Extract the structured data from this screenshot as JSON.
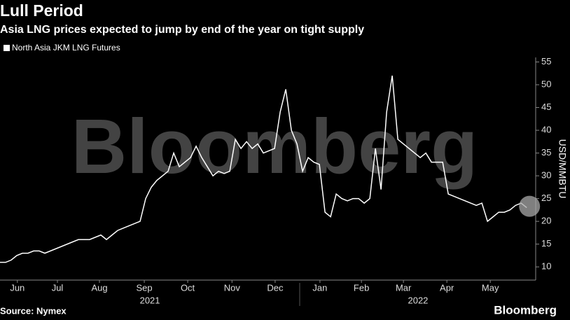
{
  "chart_data": {
    "type": "line",
    "title": "Lull Period",
    "subtitle": "Asia LNG prices expected to jump by end of the year on tight supply",
    "source": "Source: Nymex",
    "brand": "Bloomberg",
    "y_label": "USD/MMBTU",
    "series": [
      {
        "name": "North Asia JKM LNG Futures",
        "color": "#ffffff",
        "values": [
          11,
          11,
          11.5,
          12.5,
          13,
          13,
          13.5,
          13.5,
          13,
          13.5,
          14,
          14.5,
          15,
          15.5,
          16,
          16,
          16,
          16.5,
          17,
          16,
          17,
          18,
          18.5,
          19,
          19.5,
          20,
          25,
          27.5,
          29,
          30,
          31,
          35,
          32,
          33,
          34,
          36.5,
          34,
          32,
          30,
          31,
          30.5,
          31,
          38,
          36,
          37.5,
          36,
          37,
          35,
          35.5,
          36,
          44,
          49,
          40,
          37,
          31,
          34,
          33,
          32.5,
          22,
          21,
          26,
          25,
          24.5,
          25,
          25,
          24,
          25,
          36,
          27,
          44,
          52,
          38,
          37,
          36,
          35,
          34,
          35,
          33,
          33,
          33,
          26,
          25.5,
          25,
          24.5,
          24,
          23.5,
          24,
          20,
          21,
          22,
          22,
          22.5,
          23.5,
          24,
          23
        ]
      }
    ],
    "xlim": [
      0,
      95.6
    ],
    "xticks": [
      {
        "value": 3.1,
        "label": "Jun"
      },
      {
        "value": 10.25,
        "label": "Jul"
      },
      {
        "value": 17.75,
        "label": "Aug"
      },
      {
        "value": 25.75,
        "label": "Sep"
      },
      {
        "value": 33.5,
        "label": "Oct"
      },
      {
        "value": 41.4,
        "label": "Nov"
      },
      {
        "value": 49.1,
        "label": "Dec"
      },
      {
        "value": 57.1,
        "label": "Jan"
      },
      {
        "value": 64.5,
        "label": "Feb"
      },
      {
        "value": 72,
        "label": "Mar"
      },
      {
        "value": 79.75,
        "label": "Apr"
      },
      {
        "value": 87.5,
        "label": "May"
      }
    ],
    "year_labels": [
      {
        "value": 26.75,
        "label": "2021"
      },
      {
        "value": 74.6,
        "label": "2022"
      }
    ],
    "ylim": [
      7.1,
      56
    ],
    "yticks": [
      10,
      15,
      20,
      25,
      30,
      35,
      40,
      45,
      50,
      55
    ]
  }
}
